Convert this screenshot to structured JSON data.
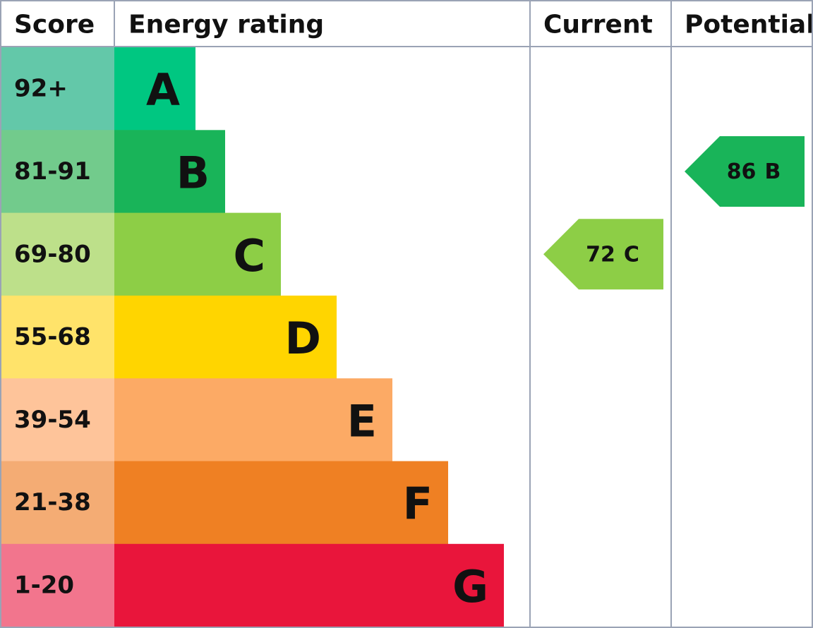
{
  "header": {
    "score": "Score",
    "rating": "Energy rating",
    "current": "Current",
    "potential": "Potential"
  },
  "rows": [
    {
      "score": "92+",
      "letter": "A",
      "score_color": "#63c8a9",
      "color": "#00c781"
    },
    {
      "score": "81-91",
      "letter": "B",
      "score_color": "#72cb8c",
      "color": "#19b459"
    },
    {
      "score": "69-80",
      "letter": "C",
      "score_color": "#bde08a",
      "color": "#8dce46"
    },
    {
      "score": "55-68",
      "letter": "D",
      "score_color": "#ffe36a",
      "color": "#ffd500"
    },
    {
      "score": "39-54",
      "letter": "E",
      "score_color": "#fec49a",
      "color": "#fcaa65"
    },
    {
      "score": "21-38",
      "letter": "F",
      "score_color": "#f4ac74",
      "color": "#ef8023"
    },
    {
      "score": "1-20",
      "letter": "G",
      "score_color": "#f2758d",
      "color": "#e9153b"
    }
  ],
  "current": {
    "score": 72,
    "rating": "C"
  },
  "potential": {
    "score": 86,
    "rating": "B"
  }
}
